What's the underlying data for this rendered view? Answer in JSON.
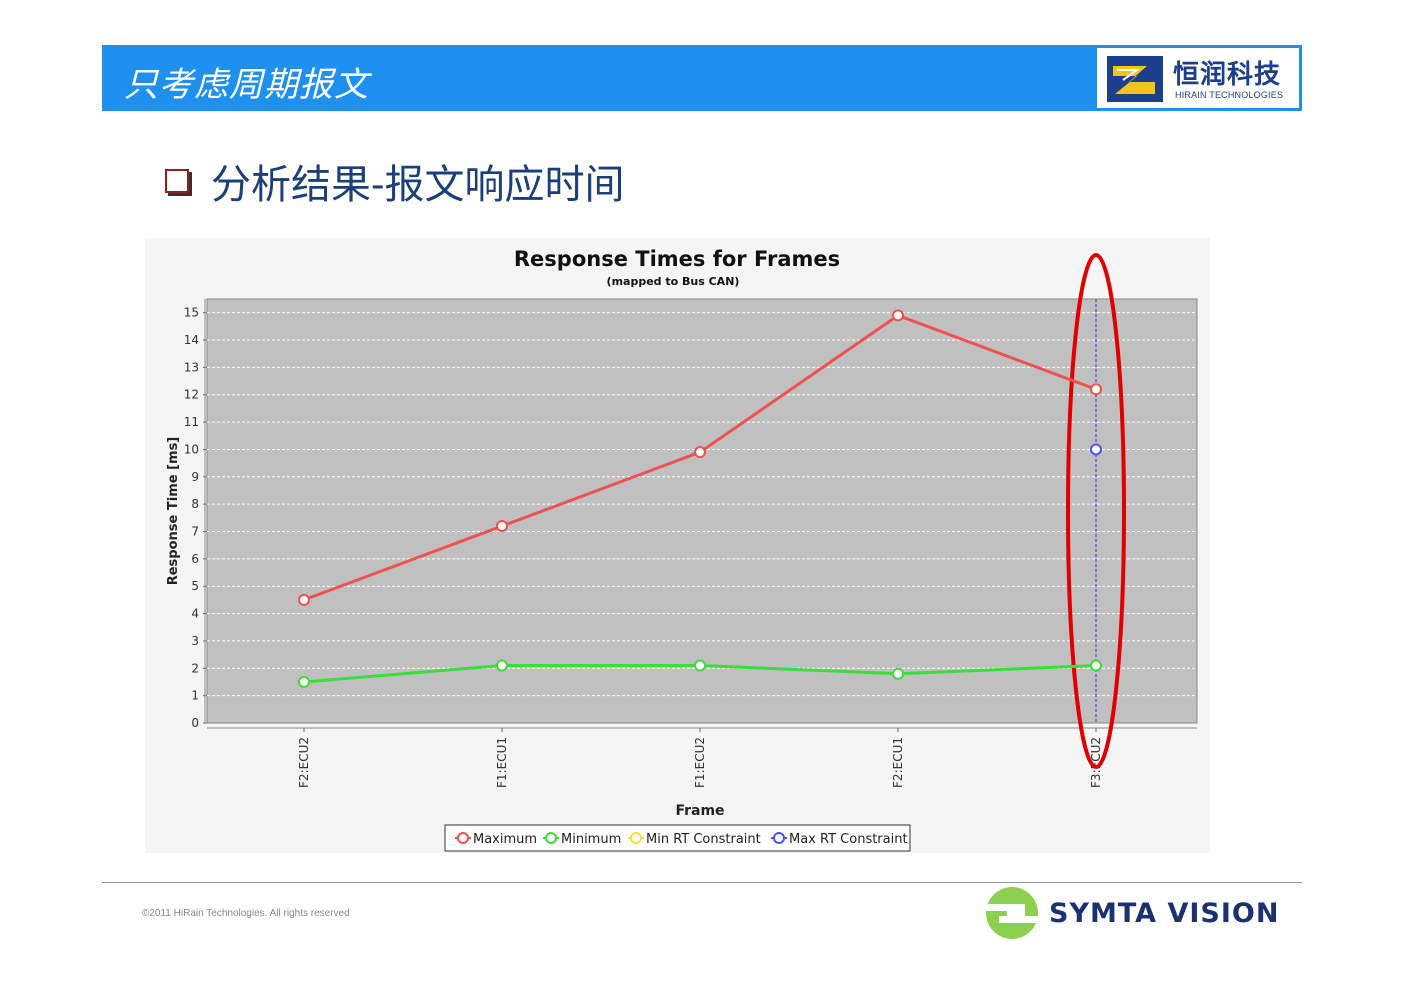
{
  "header": {
    "title": "只考虑周期报文",
    "logo_cn": "恒润科技",
    "logo_en": "HIRAIN TECHNOLOGIES"
  },
  "subheading": "分析结果-报文响应时间",
  "chart_data": {
    "type": "line",
    "title": "Response Times for Frames",
    "subtitle": "(mapped to Bus CAN)",
    "xlabel": "Frame",
    "ylabel": "Response Time [ms]",
    "categories": [
      "F2:ECU2",
      "F1:ECU1",
      "F1:ECU2",
      "F2:ECU1",
      "F3:ECU2"
    ],
    "ylim": [
      0,
      15.5
    ],
    "yticks": [
      0,
      1,
      2,
      3,
      4,
      5,
      6,
      7,
      8,
      9,
      10,
      11,
      12,
      13,
      14,
      15
    ],
    "grid": true,
    "legend_position": "bottom",
    "series": [
      {
        "name": "Maximum",
        "color": "#f05050",
        "values": [
          4.5,
          7.2,
          9.9,
          14.9,
          12.2
        ]
      },
      {
        "name": "Minimum",
        "color": "#3cdc3c",
        "values": [
          1.5,
          2.1,
          2.1,
          1.8,
          2.1
        ]
      },
      {
        "name": "Min RT Constraint",
        "color": "#f0e040",
        "values": [
          null,
          null,
          null,
          null,
          null
        ]
      },
      {
        "name": "Max RT Constraint",
        "color": "#5050f0",
        "values": [
          null,
          null,
          null,
          null,
          10
        ]
      }
    ],
    "highlight_category": "F3:ECU2",
    "highlight_color": "#e00000"
  },
  "footer": {
    "copyright": "©2011 HiRain Technologies. All rights reserved",
    "brand": "SYMTA VISION"
  }
}
